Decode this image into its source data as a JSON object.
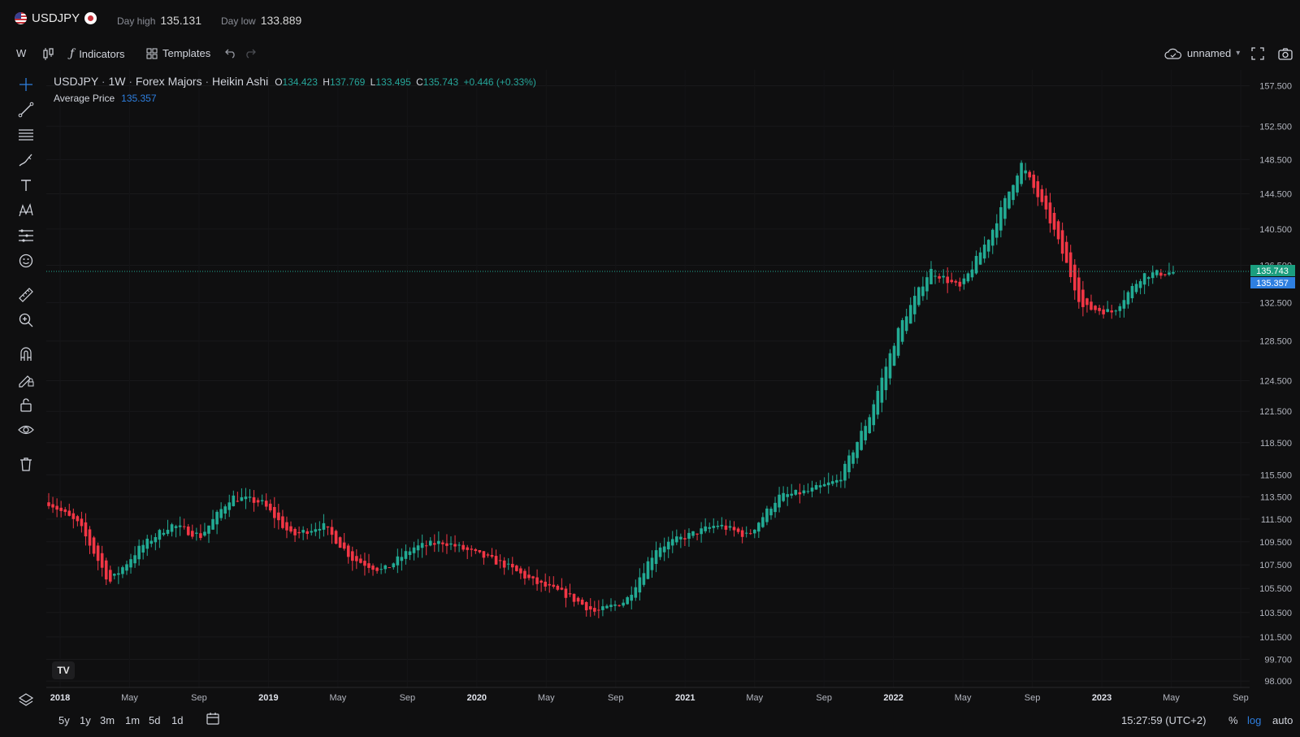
{
  "header": {
    "symbol": "USDJPY",
    "day_high_label": "Day high",
    "day_high_value": "135.131",
    "day_low_label": "Day low",
    "day_low_value": "133.889"
  },
  "toolbar": {
    "interval": "W",
    "indicators_label": "Indicators",
    "templates_label": "Templates",
    "layout_name": "unnamed"
  },
  "legend": {
    "symbol": "USDJPY",
    "interval": "1W",
    "exchange": "Forex Majors",
    "chart_style": "Heikin Ashi",
    "open_key": "O",
    "open": "134.423",
    "high_key": "H",
    "high": "137.769",
    "low_key": "L",
    "low": "133.495",
    "close_key": "C",
    "close": "135.743",
    "change": "+0.446 (+0.33%)",
    "avg_label": "Average Price",
    "avg_value": "135.357"
  },
  "price_axis": {
    "labels": [
      "157.500",
      "152.500",
      "148.500",
      "144.500",
      "140.500",
      "136.500",
      "132.500",
      "128.500",
      "124.500",
      "121.500",
      "118.500",
      "115.500",
      "113.500",
      "111.500",
      "109.500",
      "107.500",
      "105.500",
      "103.500",
      "101.500",
      "99.700",
      "98.000"
    ],
    "last_price": "135.743",
    "avg_price": "135.357",
    "scale": "log"
  },
  "time_axis": {
    "labels": [
      "2018",
      "May",
      "Sep",
      "2019",
      "May",
      "Sep",
      "2020",
      "May",
      "Sep",
      "2021",
      "May",
      "Sep",
      "2022",
      "May",
      "Sep",
      "2023",
      "May",
      "Sep"
    ]
  },
  "bottom": {
    "ranges": [
      "5y",
      "1y",
      "3m",
      "1m",
      "5d",
      "1d"
    ],
    "time": "15:27:59 (UTC+2)",
    "percent": "%",
    "log": "log",
    "auto": "auto"
  },
  "colors": {
    "up": "#22ab94",
    "down": "#f23645",
    "background": "#0f0f10",
    "avg_badge": "#2e7fe0",
    "last_badge": "#1b9e7f"
  },
  "chart_data": {
    "type": "candlestick",
    "series_style": "Heikin Ashi",
    "scale": "log",
    "ylim": [
      97.5,
      159.5
    ],
    "x": [
      "2018",
      "May",
      "Sep",
      "2019",
      "May",
      "Sep",
      "2020",
      "May",
      "Sep",
      "2021",
      "May",
      "Sep",
      "2022",
      "May",
      "Sep",
      "2023",
      "May"
    ],
    "close_path": [
      113.0,
      111.0,
      106.0,
      109.0,
      111.0,
      110.0,
      113.5,
      113.0,
      110.0,
      111.0,
      108.0,
      107.0,
      109.0,
      109.5,
      108.5,
      107.5,
      106.0,
      105.0,
      103.5,
      104.5,
      109.0,
      110.0,
      111.0,
      110.0,
      113.5,
      114.0,
      115.0,
      121.0,
      130.0,
      136.0,
      134.0,
      140.0,
      148.0,
      141.0,
      132.0,
      131.5,
      135.5,
      135.743
    ],
    "last": 135.743,
    "average_price": 135.357
  }
}
